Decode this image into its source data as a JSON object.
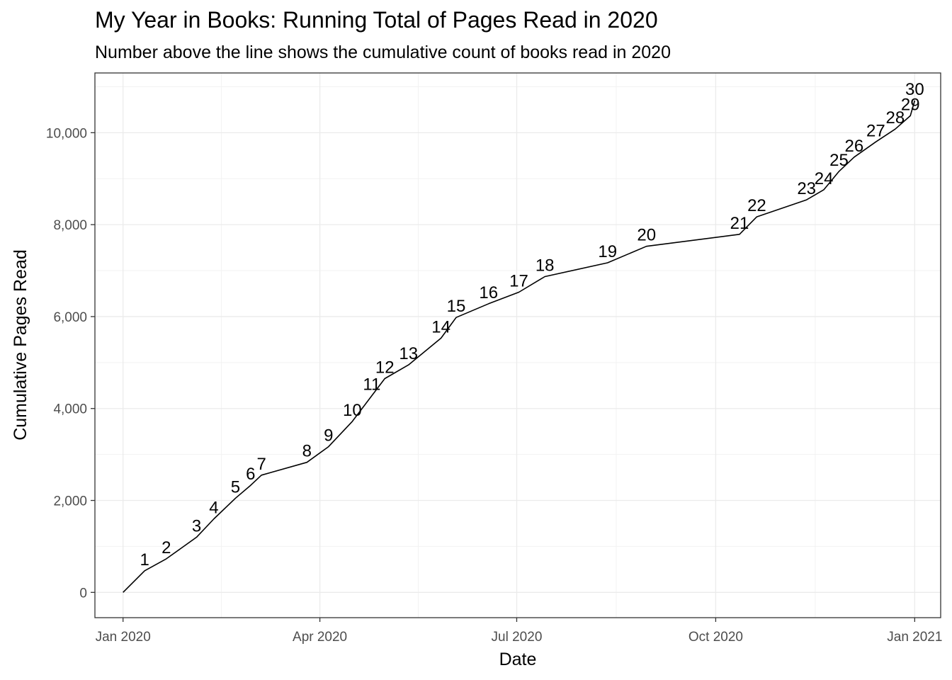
{
  "chart_data": {
    "type": "line",
    "title": "My Year in Books: Running Total of Pages Read in 2020",
    "subtitle": "Number above the line shows the cumulative count of books read in 2020",
    "xlabel": "Date",
    "ylabel": "Cumulative Pages Read",
    "xlim": [
      "2019-12-19",
      "2021-01-13"
    ],
    "ylim": [
      -550,
      11300
    ],
    "x_ticks": [
      {
        "date": "2020-01-01",
        "label": "Jan 2020"
      },
      {
        "date": "2020-04-01",
        "label": "Apr 2020"
      },
      {
        "date": "2020-07-01",
        "label": "Jul 2020"
      },
      {
        "date": "2020-10-01",
        "label": "Oct 2020"
      },
      {
        "date": "2021-01-01",
        "label": "Jan 2021"
      }
    ],
    "y_ticks": [
      {
        "value": 0,
        "label": "0"
      },
      {
        "value": 2000,
        "label": "2,000"
      },
      {
        "value": 4000,
        "label": "4,000"
      },
      {
        "value": 6000,
        "label": "6,000"
      },
      {
        "value": 8000,
        "label": "8,000"
      },
      {
        "value": 10000,
        "label": "10,000"
      }
    ],
    "grid": true,
    "line_color": "#000000",
    "start_point": {
      "x": "2020-01-01",
      "y": 0
    },
    "points": [
      {
        "x": "2020-01-11",
        "y": 470,
        "label": "1"
      },
      {
        "x": "2020-01-21",
        "y": 730,
        "label": "2"
      },
      {
        "x": "2020-02-04",
        "y": 1200,
        "label": "3"
      },
      {
        "x": "2020-02-12",
        "y": 1600,
        "label": "4"
      },
      {
        "x": "2020-02-22",
        "y": 2050,
        "label": "5"
      },
      {
        "x": "2020-02-29",
        "y": 2330,
        "label": "6"
      },
      {
        "x": "2020-03-05",
        "y": 2550,
        "label": "7"
      },
      {
        "x": "2020-03-26",
        "y": 2830,
        "label": "8"
      },
      {
        "x": "2020-04-05",
        "y": 3170,
        "label": "9"
      },
      {
        "x": "2020-04-16",
        "y": 3720,
        "label": "10"
      },
      {
        "x": "2020-04-25",
        "y": 4280,
        "label": "11"
      },
      {
        "x": "2020-05-01",
        "y": 4650,
        "label": "12"
      },
      {
        "x": "2020-05-12",
        "y": 4950,
        "label": "13"
      },
      {
        "x": "2020-05-27",
        "y": 5530,
        "label": "14"
      },
      {
        "x": "2020-06-03",
        "y": 5980,
        "label": "15"
      },
      {
        "x": "2020-06-18",
        "y": 6280,
        "label": "16"
      },
      {
        "x": "2020-07-02",
        "y": 6530,
        "label": "17"
      },
      {
        "x": "2020-07-14",
        "y": 6870,
        "label": "18"
      },
      {
        "x": "2020-08-12",
        "y": 7170,
        "label": "19"
      },
      {
        "x": "2020-08-30",
        "y": 7530,
        "label": "20"
      },
      {
        "x": "2020-10-12",
        "y": 7790,
        "label": "21"
      },
      {
        "x": "2020-10-20",
        "y": 8170,
        "label": "22"
      },
      {
        "x": "2020-11-12",
        "y": 8540,
        "label": "23"
      },
      {
        "x": "2020-11-20",
        "y": 8760,
        "label": "24"
      },
      {
        "x": "2020-11-27",
        "y": 9160,
        "label": "25"
      },
      {
        "x": "2020-12-04",
        "y": 9470,
        "label": "26"
      },
      {
        "x": "2020-12-14",
        "y": 9800,
        "label": "27"
      },
      {
        "x": "2020-12-23",
        "y": 10080,
        "label": "28"
      },
      {
        "x": "2020-12-30",
        "y": 10370,
        "label": "29"
      },
      {
        "x": "2021-01-01",
        "y": 10700,
        "label": "30"
      }
    ]
  }
}
